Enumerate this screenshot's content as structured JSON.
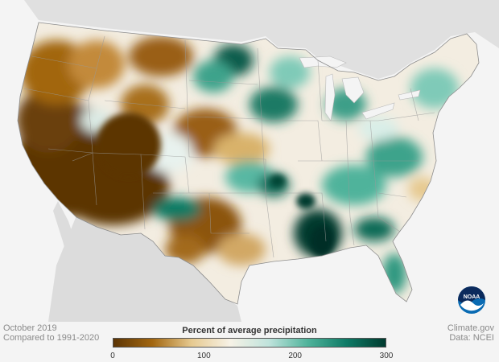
{
  "map": {
    "title": "Percent of average precipitation",
    "period": "October 2019",
    "baseline": "Compared to 1991-2020",
    "credit": "Climate.gov",
    "source": "Data: NCEI",
    "logo_text": "NOAA"
  },
  "legend": {
    "ticks": [
      "0",
      "100",
      "200",
      "300"
    ],
    "tick_values": [
      0,
      100,
      200,
      300
    ],
    "min": 0,
    "max": 300,
    "colors": [
      "#5c3505",
      "#a2660f",
      "#e6c98f",
      "#f7f2e6",
      "#bfe3dc",
      "#4fb39b",
      "#0e7a66",
      "#003b2f"
    ]
  },
  "colors": {
    "very_dry": "#5c3505",
    "dry": "#b0731c",
    "near_normal": "#f5f0e6",
    "wet": "#46a890",
    "very_wet": "#004436",
    "land_outside": "#dedede",
    "water": "#f4f4f4"
  }
}
